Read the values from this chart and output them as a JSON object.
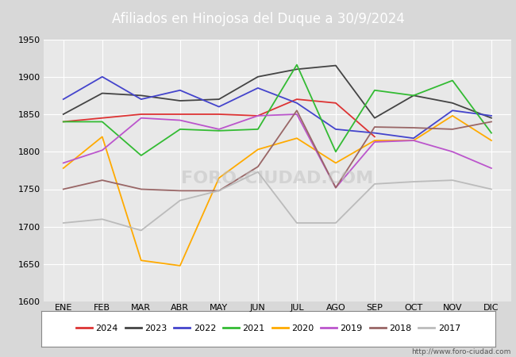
{
  "title": "Afiliados en Hinojosa del Duque a 30/9/2024",
  "ylim": [
    1600,
    1950
  ],
  "yticks": [
    1600,
    1650,
    1700,
    1750,
    1800,
    1850,
    1900,
    1950
  ],
  "months": [
    "ENE",
    "FEB",
    "MAR",
    "ABR",
    "MAY",
    "JUN",
    "JUL",
    "AGO",
    "SEP",
    "OCT",
    "NOV",
    "DIC"
  ],
  "series": {
    "2024": {
      "color": "#dd3333",
      "data": [
        1840,
        1845,
        1850,
        1850,
        1850,
        1848,
        1870,
        1865,
        1820,
        null,
        null,
        null
      ]
    },
    "2023": {
      "color": "#444444",
      "data": [
        1850,
        1878,
        1875,
        1868,
        1870,
        1900,
        1910,
        1915,
        1845,
        1875,
        1865,
        1845
      ]
    },
    "2022": {
      "color": "#4444cc",
      "data": [
        1870,
        1900,
        1870,
        1882,
        1860,
        1885,
        1865,
        1830,
        1825,
        1818,
        1855,
        1848
      ]
    },
    "2021": {
      "color": "#33bb33",
      "data": [
        1840,
        1840,
        1795,
        1830,
        1828,
        1830,
        1916,
        1800,
        1882,
        1875,
        1895,
        1825
      ]
    },
    "2020": {
      "color": "#ffaa00",
      "data": [
        1778,
        1820,
        1655,
        1648,
        1765,
        1803,
        1818,
        1785,
        1815,
        1815,
        1848,
        1815
      ]
    },
    "2019": {
      "color": "#bb55cc",
      "data": [
        1785,
        1802,
        1845,
        1842,
        1830,
        1848,
        1850,
        1752,
        1813,
        1815,
        1800,
        1778
      ]
    },
    "2018": {
      "color": "#996666",
      "data": [
        1750,
        1762,
        1750,
        1748,
        1748,
        1780,
        1855,
        1752,
        1833,
        1832,
        1830,
        1840
      ]
    },
    "2017": {
      "color": "#bbbbbb",
      "data": [
        1705,
        1710,
        1695,
        1735,
        1748,
        1773,
        1705,
        1705,
        1757,
        1760,
        1762,
        1750
      ]
    }
  },
  "legend_order": [
    "2024",
    "2023",
    "2022",
    "2021",
    "2020",
    "2019",
    "2018",
    "2017"
  ],
  "watermark": "http://www.foro-ciudad.com",
  "header_color": "#5b8ec4",
  "bg_color": "#d8d8d8",
  "plot_bg": "#e8e8e8",
  "grid_color": "#ffffff"
}
